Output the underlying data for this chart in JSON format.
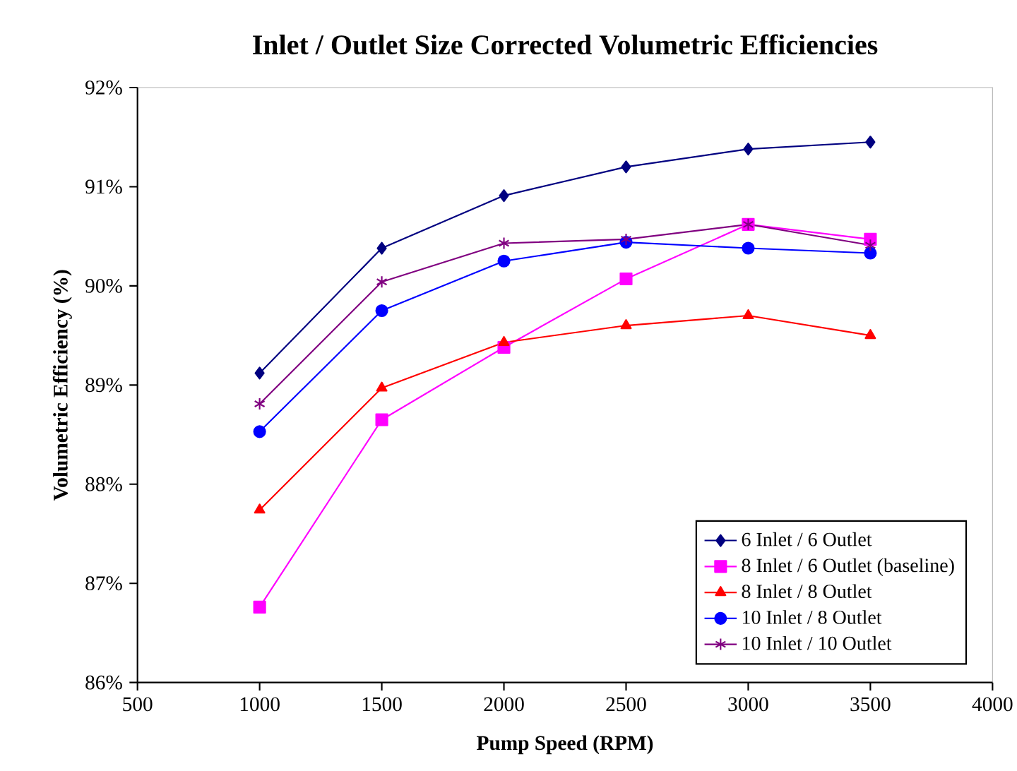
{
  "chart_data": {
    "type": "line",
    "title": "Inlet / Outlet Size Corrected Volumetric Efficiencies",
    "xlabel": "Pump Speed (RPM)",
    "ylabel": "Volumetric Efficiency (%)",
    "x": [
      1000,
      1500,
      2000,
      2500,
      3000,
      3500
    ],
    "xlim": [
      500,
      4000
    ],
    "xticks": [
      500,
      1000,
      1500,
      2000,
      2500,
      3000,
      3500,
      4000
    ],
    "ylim": [
      86,
      92
    ],
    "yticks": [
      {
        "value": 86,
        "label": "86%"
      },
      {
        "value": 87,
        "label": "87%"
      },
      {
        "value": 88,
        "label": "88%"
      },
      {
        "value": 89,
        "label": "89%"
      },
      {
        "value": 90,
        "label": "90%"
      },
      {
        "value": 91,
        "label": "91%"
      },
      {
        "value": 92,
        "label": "92%"
      }
    ],
    "grid": false,
    "legend": "bottom right",
    "line_style": "solid",
    "series": [
      {
        "name": "6 Inlet / 6 Outlet",
        "color": "#000080",
        "marker": "diamond",
        "values": [
          89.12,
          90.38,
          90.91,
          91.2,
          91.38,
          91.45
        ]
      },
      {
        "name": "8 Inlet / 6 Outlet (baseline)",
        "color": "#ff00ff",
        "marker": "square",
        "values": [
          86.76,
          88.65,
          89.38,
          90.07,
          90.62,
          90.47
        ]
      },
      {
        "name": "8 Inlet / 8 Outlet",
        "color": "#ff0000",
        "marker": "triangle",
        "values": [
          87.74,
          88.97,
          89.43,
          89.6,
          89.7,
          89.5
        ]
      },
      {
        "name": "10 Inlet / 8 Outlet",
        "color": "#0000ff",
        "marker": "circle",
        "values": [
          88.53,
          89.75,
          90.25,
          90.44,
          90.38,
          90.33
        ]
      },
      {
        "name": "10 Inlet / 10 Outlet",
        "color": "#800080",
        "marker": "cross",
        "values": [
          88.81,
          90.04,
          90.43,
          90.47,
          90.62,
          90.41
        ]
      }
    ]
  }
}
